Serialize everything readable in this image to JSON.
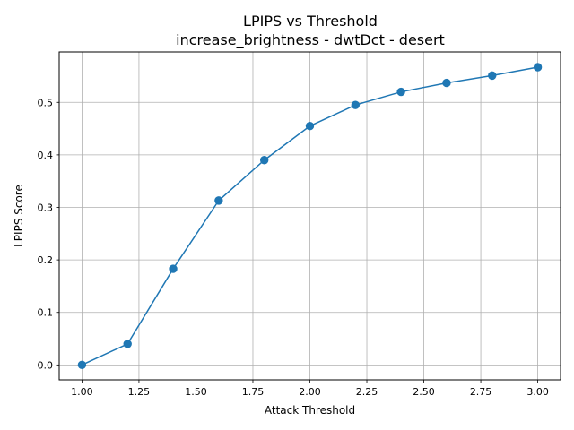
{
  "chart_data": {
    "type": "line",
    "title": "LPIPS vs Threshold",
    "subtitle": "increase_brightness - dwtDct - desert",
    "xlabel": "Attack Threshold",
    "ylabel": "LPIPS Score",
    "xlim": [
      0.9,
      3.1
    ],
    "ylim": [
      -0.0284,
      0.596
    ],
    "xticks": [
      1.0,
      1.25,
      1.5,
      1.75,
      2.0,
      2.25,
      2.5,
      2.75,
      3.0
    ],
    "xtick_labels": [
      "1.00",
      "1.25",
      "1.50",
      "1.75",
      "2.00",
      "2.25",
      "2.50",
      "2.75",
      "3.00"
    ],
    "yticks": [
      0.0,
      0.1,
      0.2,
      0.3,
      0.4,
      0.5
    ],
    "ytick_labels": [
      "0.0",
      "0.1",
      "0.2",
      "0.3",
      "0.4",
      "0.5"
    ],
    "grid": true,
    "series": [
      {
        "color": "#1f77b4",
        "marker": "circle",
        "x": [
          1.0,
          1.2,
          1.4,
          1.6,
          1.8,
          2.0,
          2.2,
          2.4,
          2.6,
          2.8,
          3.0
        ],
        "y": [
          0.0,
          0.04,
          0.183,
          0.313,
          0.39,
          0.455,
          0.495,
          0.52,
          0.537,
          0.551,
          0.567
        ]
      }
    ]
  }
}
